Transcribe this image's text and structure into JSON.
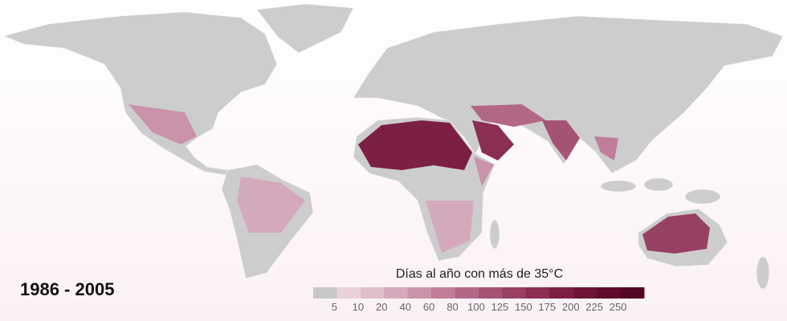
{
  "period": "1986 - 2005",
  "legend": {
    "title": "Días al año con más de 35°C",
    "ticks": [
      5,
      10,
      20,
      40,
      60,
      80,
      100,
      125,
      150,
      175,
      200,
      225,
      250
    ],
    "colors": [
      "#c8c8c8",
      "#ead3dc",
      "#e0bfcd",
      "#d5a9bc",
      "#ca93ab",
      "#bf7d99",
      "#b36787",
      "#a65275",
      "#983f64",
      "#8a2e54",
      "#7c1f45",
      "#6e1438",
      "#600b2c",
      "#540626"
    ]
  }
}
